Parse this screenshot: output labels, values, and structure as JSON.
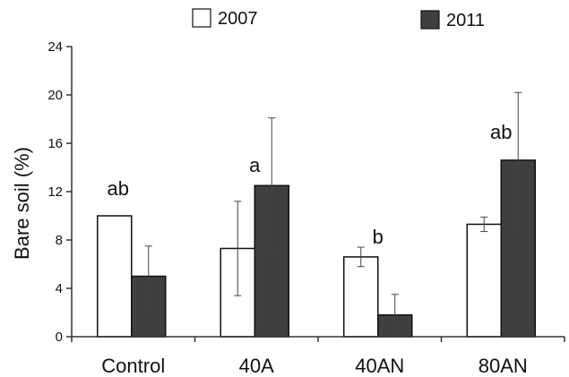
{
  "chart_data": {
    "type": "bar",
    "title": "",
    "xlabel": "",
    "ylabel": "Bare soil (%)",
    "ylim": [
      0,
      24
    ],
    "yticks": [
      0,
      4,
      8,
      12,
      16,
      20,
      24
    ],
    "grid": false,
    "legend_position": "top",
    "categories": [
      "Control",
      "40A",
      "40AN",
      "80AN"
    ],
    "series": [
      {
        "name": "2007",
        "color": "#ffffff",
        "values": [
          10.0,
          7.3,
          6.6,
          9.3
        ],
        "error": [
          null,
          3.9,
          0.8,
          0.6
        ]
      },
      {
        "name": "2011",
        "color": "#3f3f3f",
        "values": [
          5.0,
          12.5,
          1.8,
          14.6
        ],
        "error": [
          2.5,
          5.6,
          1.7,
          5.6
        ]
      }
    ],
    "annotations": [
      "ab",
      "a",
      "b",
      "ab"
    ]
  }
}
